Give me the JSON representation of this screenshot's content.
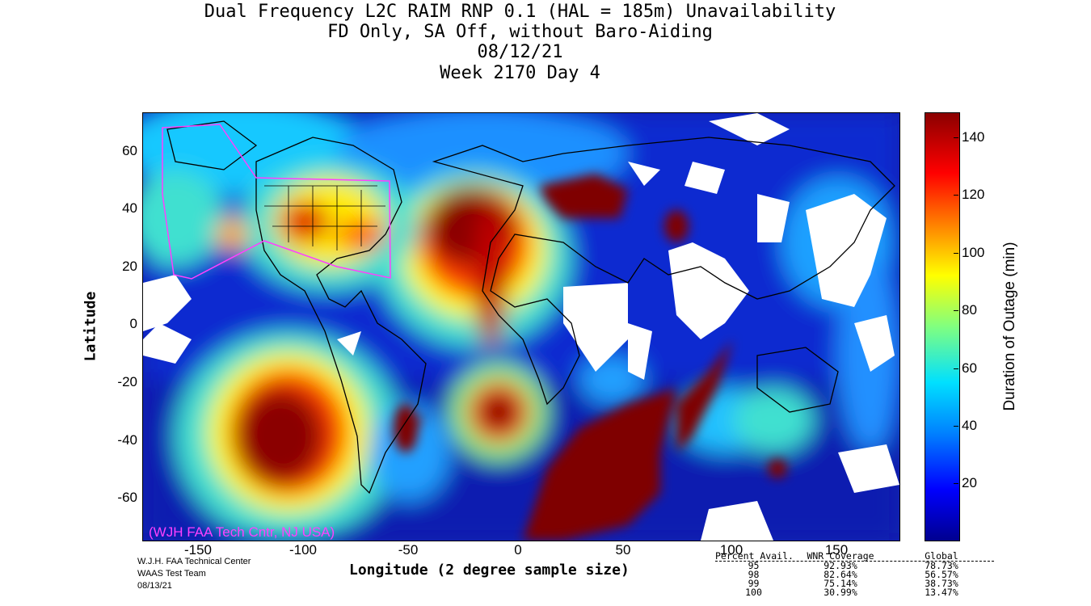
{
  "title": {
    "line1": "Dual Frequency L2C RAIM RNP 0.1 (HAL = 185m) Unavailability",
    "line2": "FD Only, SA Off, without Baro-Aiding",
    "line3": "08/12/21",
    "line4": "Week 2170 Day 4"
  },
  "axes": {
    "xlabel": "Longitude (2 degree sample size)",
    "ylabel": "Latitude",
    "x_ticks": [
      "-150",
      "-100",
      "-50",
      "0",
      "50",
      "100",
      "150"
    ],
    "y_ticks": [
      "60",
      "40",
      "20",
      "0",
      "-20",
      "-40",
      "-60"
    ],
    "x_range": [
      -180,
      180
    ],
    "y_range": [
      -74,
      74
    ]
  },
  "colorbar": {
    "label": "Duration of Outage (min)",
    "ticks": [
      "20",
      "40",
      "60",
      "80",
      "100",
      "120",
      "140"
    ],
    "range": [
      0,
      150
    ],
    "colors": [
      "#00008f",
      "#0000ff",
      "#0080ff",
      "#00e0ff",
      "#80ff80",
      "#ffff00",
      "#ff8000",
      "#ff0000",
      "#8b0000"
    ]
  },
  "watermark": "(WJH FAA Tech Cntr, NJ USA)",
  "credits": {
    "line1": "W.J.H. FAA Technical Center",
    "line2": "WAAS Test Team",
    "line3": "08/13/21"
  },
  "stats": {
    "headers": [
      "Percent Avail.",
      "WNR Coverage",
      "Global"
    ],
    "rows": [
      [
        "95",
        "92.93%",
        "78.73%"
      ],
      [
        "98",
        "82.64%",
        "56.57%"
      ],
      [
        "99",
        "75.14%",
        "38.73%"
      ],
      [
        "100",
        "30.99%",
        "13.47%"
      ]
    ]
  },
  "map_colors": {
    "ocean_base": "#0a1fb0",
    "outage_max": "#7f0000",
    "no_data": "#ffffff",
    "region_outline": "#ff40ff"
  }
}
